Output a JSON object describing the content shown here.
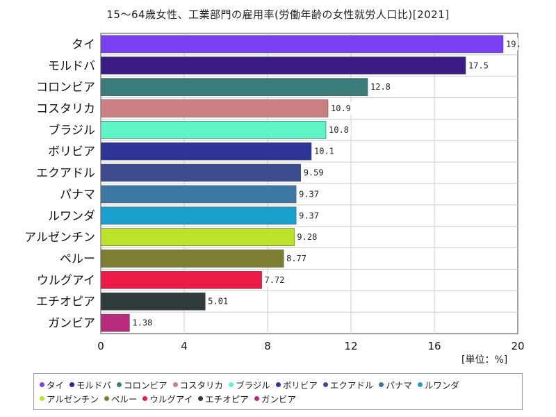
{
  "chart_data": {
    "type": "bar",
    "orientation": "horizontal",
    "title": "15～64歳女性、工業部門の雇用率(労働年齢の女性就労人口比)[2021]",
    "unit_label": "[単位：%]",
    "xlim": [
      0,
      20
    ],
    "ticks": [
      0,
      4,
      8,
      12,
      16,
      20
    ],
    "tick_labels": [
      "0",
      "4",
      "8",
      "12",
      "16",
      "20"
    ],
    "grid": true,
    "legend_position": "bottom",
    "categories": [
      "タイ",
      "モルドバ",
      "コロンビア",
      "コスタリカ",
      "ブラジル",
      "ボリビア",
      "エクアドル",
      "パナマ",
      "ルワンダ",
      "アルゼンチン",
      "ペルー",
      "ウルグアイ",
      "エチオピア",
      "ガンビア"
    ],
    "values": [
      19.3,
      17.5,
      12.8,
      10.9,
      10.8,
      10.1,
      9.59,
      9.37,
      9.37,
      9.28,
      8.77,
      7.72,
      5.01,
      1.38
    ],
    "value_labels": [
      "19.",
      "17.5",
      "12.8",
      "10.9",
      "10.8",
      "10.1",
      "9.59",
      "9.37",
      "9.37",
      "9.28",
      "8.77",
      "7.72",
      "5.01",
      "1.38"
    ],
    "colors": [
      "#7b3ff2",
      "#3a1c84",
      "#3a7d7a",
      "#cc7f80",
      "#5ef5c5",
      "#2d3596",
      "#3c4c8e",
      "#3d78a5",
      "#1aa0cc",
      "#bde22a",
      "#7e7e32",
      "#ec1a45",
      "#2f3c3a",
      "#b82c7e"
    ]
  }
}
